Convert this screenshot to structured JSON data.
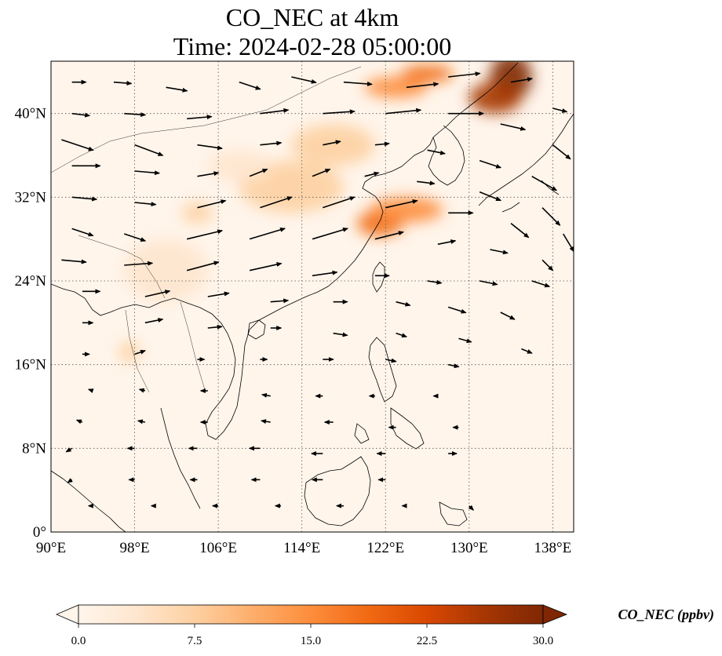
{
  "title": {
    "line1": "CO_NEC at 4km",
    "line2": "Time: 2024-02-28 05:00:00"
  },
  "map": {
    "extent": {
      "lon": [
        90,
        140
      ],
      "lat": [
        0,
        45
      ]
    },
    "lon_ticks": [
      {
        "value": 90,
        "label": "90°E"
      },
      {
        "value": 98,
        "label": "98°E"
      },
      {
        "value": 106,
        "label": "106°E"
      },
      {
        "value": 114,
        "label": "114°E"
      },
      {
        "value": 122,
        "label": "122°E"
      },
      {
        "value": 130,
        "label": "130°E"
      },
      {
        "value": 138,
        "label": "138°E"
      }
    ],
    "lat_ticks": [
      {
        "value": 0,
        "label": "0°"
      },
      {
        "value": 8,
        "label": "8°N"
      },
      {
        "value": 16,
        "label": "16°N"
      },
      {
        "value": 24,
        "label": "24°N"
      },
      {
        "value": 32,
        "label": "32°N"
      },
      {
        "value": 40,
        "label": "40°N"
      }
    ],
    "grid": "dotted",
    "background_color": "#fff5eb",
    "coast_color": "#000000"
  },
  "colorbar": {
    "label": "CO_NEC (ppbv)",
    "min": 0,
    "max": 30,
    "ticks": [
      {
        "value": 0,
        "label": "0.0"
      },
      {
        "value": 7.5,
        "label": "7.5"
      },
      {
        "value": 15,
        "label": "15.0"
      },
      {
        "value": 22.5,
        "label": "22.5"
      },
      {
        "value": 30,
        "label": "30.0"
      }
    ],
    "colors": [
      "#fff5eb",
      "#fee6ce",
      "#fdd0a2",
      "#fdae6b",
      "#fd8d3c",
      "#f16913",
      "#d94801",
      "#a63603",
      "#7f2704"
    ]
  },
  "plumes": [
    {
      "lon": 134,
      "lat": 43.5,
      "rx": 2.0,
      "ry": 2.2,
      "value": 30
    },
    {
      "lon": 132.5,
      "lat": 41.5,
      "rx": 2.5,
      "ry": 1.5,
      "value": 26
    },
    {
      "lon": 126,
      "lat": 43.8,
      "rx": 2.5,
      "ry": 0.8,
      "value": 20
    },
    {
      "lon": 123,
      "lat": 42.5,
      "rx": 3.0,
      "ry": 1.0,
      "value": 14
    },
    {
      "lon": 121.5,
      "lat": 29.5,
      "rx": 2.2,
      "ry": 1.2,
      "value": 20
    },
    {
      "lon": 124,
      "lat": 30.8,
      "rx": 3.5,
      "ry": 1.2,
      "value": 14
    },
    {
      "lon": 117,
      "lat": 37,
      "rx": 4.0,
      "ry": 2.0,
      "value": 7
    },
    {
      "lon": 113,
      "lat": 33,
      "rx": 5.0,
      "ry": 2.5,
      "value": 6
    },
    {
      "lon": 108,
      "lat": 35,
      "rx": 3.0,
      "ry": 1.5,
      "value": 4
    },
    {
      "lon": 104,
      "lat": 30.5,
      "rx": 1.5,
      "ry": 1.0,
      "value": 6
    },
    {
      "lon": 97.5,
      "lat": 17.2,
      "rx": 1.0,
      "ry": 1.0,
      "value": 6
    },
    {
      "lon": 101,
      "lat": 25,
      "rx": 4.0,
      "ry": 3.0,
      "value": 3
    }
  ],
  "wind_vectors": [
    {
      "lon": 92,
      "lat": 43,
      "u": 2.0,
      "v": 0.0
    },
    {
      "lon": 96,
      "lat": 43,
      "u": 2.5,
      "v": -0.2
    },
    {
      "lon": 101,
      "lat": 42.5,
      "u": 3.0,
      "v": -0.5
    },
    {
      "lon": 108,
      "lat": 43,
      "u": 3.0,
      "v": -1.0
    },
    {
      "lon": 113,
      "lat": 43.5,
      "u": 3.5,
      "v": -0.8
    },
    {
      "lon": 118,
      "lat": 43,
      "u": 4.0,
      "v": -0.3
    },
    {
      "lon": 124,
      "lat": 42.5,
      "u": 4.5,
      "v": 0.5
    },
    {
      "lon": 128,
      "lat": 43.5,
      "u": 4.5,
      "v": 0.5
    },
    {
      "lon": 134,
      "lat": 43,
      "u": 3.0,
      "v": 0.5
    },
    {
      "lon": 138,
      "lat": 40.5,
      "u": 2.0,
      "v": -0.5
    },
    {
      "lon": 92,
      "lat": 40,
      "u": 2.5,
      "v": -0.3
    },
    {
      "lon": 97,
      "lat": 40,
      "u": 3.0,
      "v": -0.2
    },
    {
      "lon": 103,
      "lat": 39.5,
      "u": 3.5,
      "v": 0.3
    },
    {
      "lon": 110,
      "lat": 40,
      "u": 4.0,
      "v": 0.5
    },
    {
      "lon": 116,
      "lat": 40,
      "u": 4.5,
      "v": 0.3
    },
    {
      "lon": 122,
      "lat": 40,
      "u": 5.0,
      "v": 0.5
    },
    {
      "lon": 128,
      "lat": 40,
      "u": 5.0,
      "v": 0.0
    },
    {
      "lon": 133,
      "lat": 39,
      "u": 3.5,
      "v": -0.8
    },
    {
      "lon": 138,
      "lat": 37,
      "u": 2.5,
      "v": -2.0
    },
    {
      "lon": 91,
      "lat": 37.5,
      "u": 4.5,
      "v": -1.5
    },
    {
      "lon": 98,
      "lat": 37,
      "u": 4.0,
      "v": -1.5
    },
    {
      "lon": 104,
      "lat": 37,
      "u": 3.5,
      "v": -0.5
    },
    {
      "lon": 110,
      "lat": 37,
      "u": 3.0,
      "v": 0.3
    },
    {
      "lon": 116,
      "lat": 37,
      "u": 2.5,
      "v": 0.5
    },
    {
      "lon": 121,
      "lat": 37,
      "u": 2.0,
      "v": 0.2
    },
    {
      "lon": 126,
      "lat": 36.5,
      "u": 2.5,
      "v": -0.5
    },
    {
      "lon": 131,
      "lat": 35.5,
      "u": 3.0,
      "v": -1.0
    },
    {
      "lon": 136,
      "lat": 34,
      "u": 3.5,
      "v": -2.0
    },
    {
      "lon": 92,
      "lat": 35,
      "u": 4.0,
      "v": 0.0
    },
    {
      "lon": 98,
      "lat": 34.5,
      "u": 3.5,
      "v": -0.3
    },
    {
      "lon": 104,
      "lat": 34,
      "u": 3.0,
      "v": 0.5
    },
    {
      "lon": 109,
      "lat": 34,
      "u": 2.5,
      "v": 1.0
    },
    {
      "lon": 115,
      "lat": 34,
      "u": 2.5,
      "v": 1.0
    },
    {
      "lon": 120,
      "lat": 34,
      "u": 2.0,
      "v": 0.5
    },
    {
      "lon": 125,
      "lat": 33.5,
      "u": 2.5,
      "v": -0.3
    },
    {
      "lon": 131,
      "lat": 32.5,
      "u": 3.0,
      "v": -1.2
    },
    {
      "lon": 137,
      "lat": 31,
      "u": 2.5,
      "v": -2.5
    },
    {
      "lon": 92,
      "lat": 32,
      "u": 3.5,
      "v": -0.3
    },
    {
      "lon": 98,
      "lat": 31.5,
      "u": 3.0,
      "v": -0.3
    },
    {
      "lon": 104,
      "lat": 31,
      "u": 4.0,
      "v": 1.0
    },
    {
      "lon": 110,
      "lat": 31,
      "u": 4.5,
      "v": 1.5
    },
    {
      "lon": 116,
      "lat": 31,
      "u": 4.5,
      "v": 1.5
    },
    {
      "lon": 122,
      "lat": 31,
      "u": 4.5,
      "v": 1.0
    },
    {
      "lon": 128,
      "lat": 30.5,
      "u": 3.5,
      "v": 0.0
    },
    {
      "lon": 134,
      "lat": 29.5,
      "u": 2.5,
      "v": -2.0
    },
    {
      "lon": 139,
      "lat": 28.5,
      "u": 1.5,
      "v": -2.5
    },
    {
      "lon": 92,
      "lat": 29,
      "u": 3.0,
      "v": -1.0
    },
    {
      "lon": 97,
      "lat": 28.5,
      "u": 3.0,
      "v": -1.0
    },
    {
      "lon": 103,
      "lat": 28,
      "u": 5.0,
      "v": 1.2
    },
    {
      "lon": 109,
      "lat": 28,
      "u": 5.0,
      "v": 1.5
    },
    {
      "lon": 115,
      "lat": 28,
      "u": 5.0,
      "v": 1.5
    },
    {
      "lon": 121,
      "lat": 28,
      "u": 4.0,
      "v": 1.0
    },
    {
      "lon": 127,
      "lat": 27.5,
      "u": 2.5,
      "v": 0.5
    },
    {
      "lon": 132,
      "lat": 27,
      "u": 2.5,
      "v": -0.5
    },
    {
      "lon": 137,
      "lat": 26,
      "u": 1.5,
      "v": -1.5
    },
    {
      "lon": 91,
      "lat": 26,
      "u": 3.5,
      "v": -0.3
    },
    {
      "lon": 97,
      "lat": 25.5,
      "u": 4.0,
      "v": 0.3
    },
    {
      "lon": 103,
      "lat": 25,
      "u": 4.5,
      "v": 1.2
    },
    {
      "lon": 109,
      "lat": 25,
      "u": 4.5,
      "v": 1.0
    },
    {
      "lon": 115,
      "lat": 24.5,
      "u": 3.5,
      "v": 0.5
    },
    {
      "lon": 121,
      "lat": 24.5,
      "u": 2.0,
      "v": 0.0
    },
    {
      "lon": 126,
      "lat": 24,
      "u": 2.0,
      "v": -0.3
    },
    {
      "lon": 131,
      "lat": 24,
      "u": 2.5,
      "v": -0.5
    },
    {
      "lon": 136,
      "lat": 24,
      "u": 2.5,
      "v": -0.8
    },
    {
      "lon": 93,
      "lat": 23,
      "u": 2.5,
      "v": 0.0
    },
    {
      "lon": 99,
      "lat": 22.5,
      "u": 3.5,
      "v": 0.8
    },
    {
      "lon": 105,
      "lat": 22.5,
      "u": 3.0,
      "v": 0.5
    },
    {
      "lon": 111,
      "lat": 22,
      "u": 2.5,
      "v": 0.2
    },
    {
      "lon": 117,
      "lat": 22,
      "u": 2.0,
      "v": 0.0
    },
    {
      "lon": 123,
      "lat": 22,
      "u": 2.0,
      "v": -0.5
    },
    {
      "lon": 128,
      "lat": 21.5,
      "u": 2.5,
      "v": -0.8
    },
    {
      "lon": 133,
      "lat": 21,
      "u": 2.0,
      "v": -1.0
    },
    {
      "lon": 93,
      "lat": 20,
      "u": 1.5,
      "v": 0.0
    },
    {
      "lon": 99,
      "lat": 20,
      "u": 2.5,
      "v": 0.5
    },
    {
      "lon": 105,
      "lat": 19.5,
      "u": 2.0,
      "v": 0.2
    },
    {
      "lon": 111,
      "lat": 19.5,
      "u": 1.5,
      "v": 0.0
    },
    {
      "lon": 117,
      "lat": 19,
      "u": 2.0,
      "v": -0.3
    },
    {
      "lon": 123,
      "lat": 19,
      "u": 1.5,
      "v": -0.5
    },
    {
      "lon": 129,
      "lat": 18.5,
      "u": 1.8,
      "v": -0.5
    },
    {
      "lon": 135,
      "lat": 17.5,
      "u": 1.5,
      "v": -0.6
    },
    {
      "lon": 93,
      "lat": 17,
      "u": 1.0,
      "v": 0.0
    },
    {
      "lon": 98,
      "lat": 17,
      "u": 1.5,
      "v": 0.5
    },
    {
      "lon": 104,
      "lat": 16.5,
      "u": 1.0,
      "v": 0.0
    },
    {
      "lon": 110,
      "lat": 16.5,
      "u": 1.0,
      "v": 0.0
    },
    {
      "lon": 116,
      "lat": 16.5,
      "u": 1.5,
      "v": 0.0
    },
    {
      "lon": 122,
      "lat": 16.5,
      "u": 1.5,
      "v": -0.3
    },
    {
      "lon": 128,
      "lat": 16,
      "u": 1.5,
      "v": -0.3
    },
    {
      "lon": 94,
      "lat": 13.5,
      "u": -0.6,
      "v": 0.2
    },
    {
      "lon": 99,
      "lat": 13.5,
      "u": -0.8,
      "v": 0.2
    },
    {
      "lon": 105,
      "lat": 13.5,
      "u": -1.0,
      "v": 0.0
    },
    {
      "lon": 111,
      "lat": 13,
      "u": -1.2,
      "v": 0.2
    },
    {
      "lon": 116,
      "lat": 13,
      "u": -1.0,
      "v": 0.0
    },
    {
      "lon": 121,
      "lat": 13,
      "u": -0.8,
      "v": 0.0
    },
    {
      "lon": 127,
      "lat": 13,
      "u": -0.6,
      "v": 0.0
    },
    {
      "lon": 93,
      "lat": 10.5,
      "u": -0.8,
      "v": 0.3
    },
    {
      "lon": 99,
      "lat": 10.5,
      "u": -1.0,
      "v": 0.2
    },
    {
      "lon": 105,
      "lat": 10.5,
      "u": -1.0,
      "v": 0.0
    },
    {
      "lon": 111,
      "lat": 10.5,
      "u": -1.3,
      "v": 0.2
    },
    {
      "lon": 117,
      "lat": 10.5,
      "u": -1.2,
      "v": 0.0
    },
    {
      "lon": 123,
      "lat": 10,
      "u": -1.0,
      "v": 0.0
    },
    {
      "lon": 129,
      "lat": 10,
      "u": -0.8,
      "v": 0.0
    },
    {
      "lon": 92,
      "lat": 8,
      "u": -0.8,
      "v": -0.5
    },
    {
      "lon": 98,
      "lat": 8,
      "u": -1.0,
      "v": 0.0
    },
    {
      "lon": 104,
      "lat": 8,
      "u": -1.2,
      "v": 0.0
    },
    {
      "lon": 110,
      "lat": 8,
      "u": -1.5,
      "v": 0.0
    },
    {
      "lon": 116,
      "lat": 7.5,
      "u": -1.6,
      "v": 0.0
    },
    {
      "lon": 122,
      "lat": 7.5,
      "u": -1.2,
      "v": 0.0
    },
    {
      "lon": 128,
      "lat": 7.5,
      "u": 1.2,
      "v": 0.0
    },
    {
      "lon": 92,
      "lat": 5,
      "u": -0.6,
      "v": -0.4
    },
    {
      "lon": 98,
      "lat": 5,
      "u": -0.8,
      "v": 0.0
    },
    {
      "lon": 104,
      "lat": 5,
      "u": -1.0,
      "v": 0.0
    },
    {
      "lon": 110,
      "lat": 5,
      "u": -1.2,
      "v": 0.0
    },
    {
      "lon": 116,
      "lat": 5,
      "u": -1.5,
      "v": 0.0
    },
    {
      "lon": 122,
      "lat": 5,
      "u": -1.0,
      "v": 0.0
    },
    {
      "lon": 94,
      "lat": 2.5,
      "u": -0.6,
      "v": 0.0
    },
    {
      "lon": 100,
      "lat": 2.5,
      "u": -0.6,
      "v": 0.0
    },
    {
      "lon": 106,
      "lat": 2.5,
      "u": -0.8,
      "v": 0.0
    },
    {
      "lon": 112,
      "lat": 2.5,
      "u": -0.8,
      "v": 0.0
    },
    {
      "lon": 118,
      "lat": 2.5,
      "u": -1.0,
      "v": 0.0
    },
    {
      "lon": 124,
      "lat": 2.5,
      "u": -0.6,
      "v": 0.0
    },
    {
      "lon": 130,
      "lat": 2.5,
      "u": 0.6,
      "v": -0.6
    }
  ]
}
